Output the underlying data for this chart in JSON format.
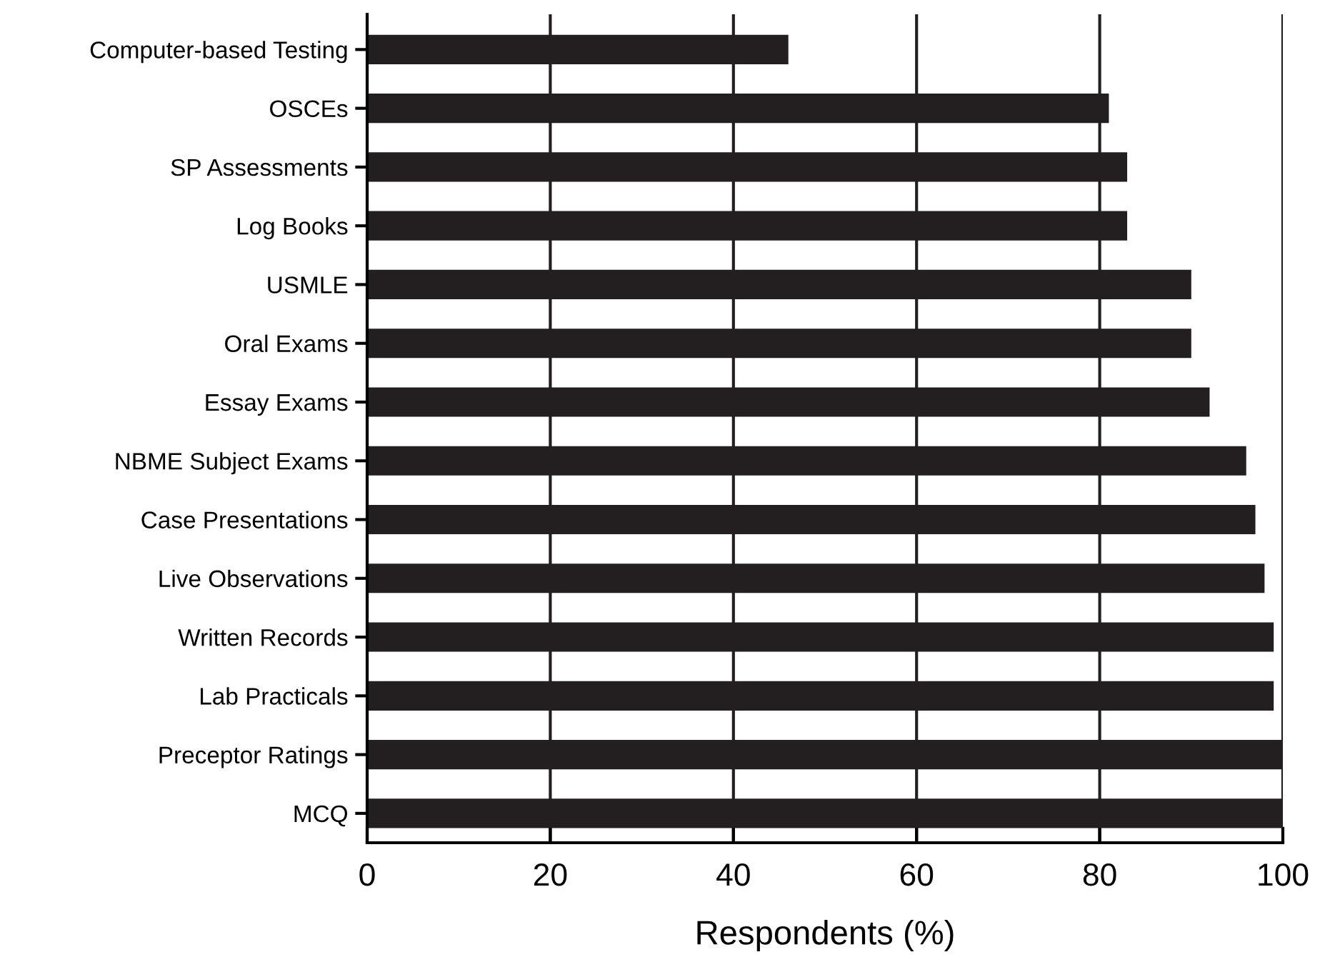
{
  "chart_data": {
    "type": "bar",
    "orientation": "horizontal",
    "xlabel": "Respondents (%)",
    "categories": [
      "Computer-based Testing",
      "OSCEs",
      "SP Assessments",
      "Log Books",
      "USMLE",
      "Oral Exams",
      "Essay Exams",
      "NBME Subject Exams",
      "Case Presentations",
      "Live Observations",
      "Written Records",
      "Lab Practicals",
      "Preceptor Ratings",
      "MCQ"
    ],
    "values": [
      46,
      81,
      83,
      83,
      90,
      90,
      92,
      96,
      97,
      98,
      99,
      99,
      100,
      100
    ],
    "color": "#231f20",
    "xlim": [
      0,
      100
    ],
    "xticks": [
      0,
      20,
      40,
      60,
      80,
      100
    ],
    "grid": "x",
    "legend": false
  }
}
